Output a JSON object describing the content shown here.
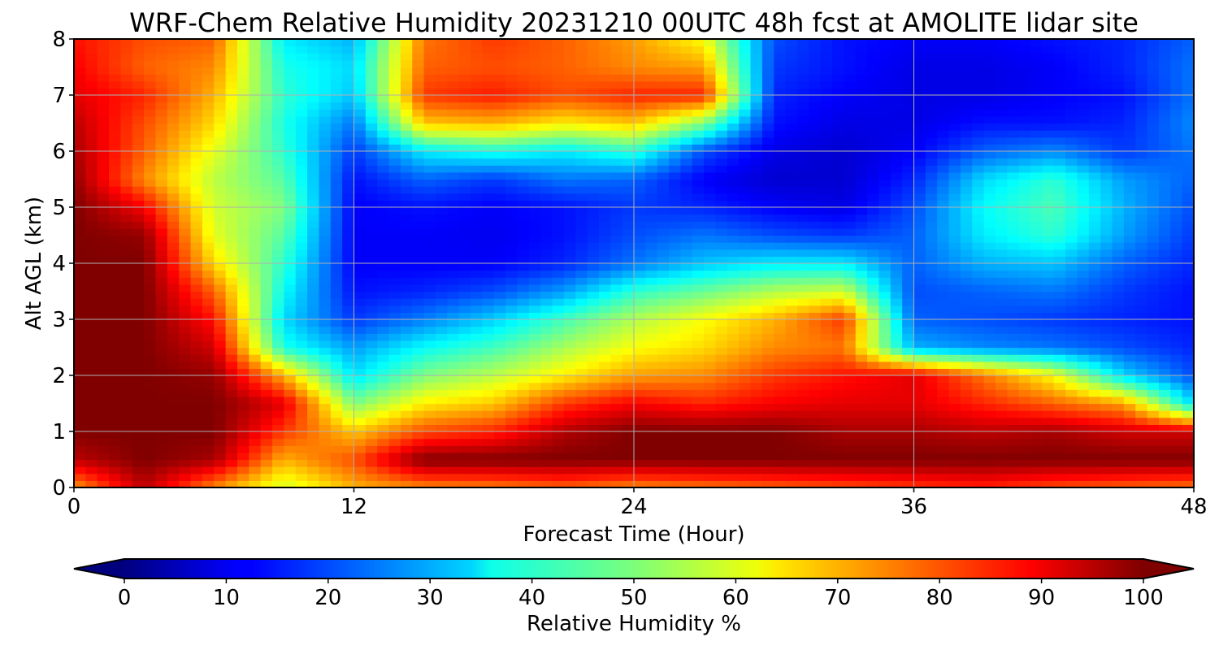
{
  "chart_data": {
    "type": "heatmap",
    "title": "WRF-Chem Relative Humidity 20231210 00UTC 48h fcst at AMOLITE lidar site",
    "xlabel": "Forecast Time (Hour)",
    "ylabel": "Alt AGL (km)",
    "xlim": [
      0,
      48
    ],
    "ylim": [
      0,
      8
    ],
    "x_ticks": [
      0,
      12,
      24,
      36,
      48
    ],
    "y_ticks": [
      0,
      1,
      2,
      3,
      4,
      5,
      6,
      7,
      8
    ],
    "grid": true,
    "colormap": "jet",
    "z_range": [
      0,
      100
    ],
    "colorbar": {
      "label": "Relative Humidity %",
      "ticks": [
        0,
        10,
        20,
        30,
        40,
        50,
        60,
        70,
        80,
        90,
        100
      ],
      "extend": "both",
      "orientation": "horizontal",
      "position": "bottom"
    },
    "x": [
      0,
      3,
      6,
      9,
      12,
      15,
      18,
      21,
      24,
      27,
      30,
      33,
      36,
      39,
      42,
      45,
      48
    ],
    "y": [
      0,
      0.5,
      1,
      1.5,
      2,
      2.5,
      3,
      3.5,
      4,
      4.5,
      5,
      5.5,
      6,
      6.5,
      7,
      7.5,
      8
    ],
    "z": [
      [
        72,
        94,
        74,
        58,
        70,
        74,
        75,
        78,
        74,
        76,
        78,
        80,
        82,
        84,
        80,
        78,
        76
      ],
      [
        94,
        100,
        96,
        70,
        80,
        100,
        100,
        100,
        100,
        100,
        100,
        100,
        100,
        100,
        100,
        100,
        100
      ],
      [
        100,
        100,
        100,
        82,
        68,
        80,
        84,
        95,
        100,
        100,
        100,
        96,
        96,
        94,
        96,
        92,
        92
      ],
      [
        100,
        100,
        100,
        90,
        50,
        64,
        68,
        82,
        88,
        84,
        88,
        90,
        90,
        84,
        78,
        72,
        34
      ],
      [
        100,
        100,
        98,
        70,
        35,
        50,
        56,
        64,
        72,
        74,
        82,
        86,
        90,
        76,
        62,
        34,
        20
      ],
      [
        100,
        100,
        92,
        40,
        28,
        38,
        44,
        54,
        62,
        66,
        74,
        76,
        30,
        26,
        24,
        20,
        16
      ],
      [
        100,
        100,
        86,
        34,
        18,
        25,
        33,
        44,
        55,
        62,
        70,
        82,
        22,
        20,
        18,
        16,
        14
      ],
      [
        100,
        100,
        78,
        38,
        14,
        16,
        20,
        28,
        42,
        48,
        55,
        58,
        20,
        22,
        24,
        18,
        14
      ],
      [
        100,
        100,
        66,
        42,
        12,
        12,
        12,
        16,
        24,
        32,
        36,
        36,
        22,
        30,
        32,
        22,
        16
      ],
      [
        100,
        98,
        60,
        46,
        12,
        12,
        11,
        14,
        20,
        24,
        20,
        18,
        22,
        36,
        42,
        28,
        18
      ],
      [
        100,
        88,
        58,
        50,
        12,
        14,
        12,
        14,
        18,
        16,
        12,
        10,
        20,
        38,
        45,
        30,
        20
      ],
      [
        98,
        74,
        56,
        46,
        14,
        22,
        18,
        24,
        22,
        12,
        8,
        8,
        16,
        34,
        42,
        28,
        22
      ],
      [
        96,
        78,
        60,
        42,
        18,
        36,
        40,
        36,
        42,
        20,
        10,
        8,
        12,
        22,
        26,
        18,
        24
      ],
      [
        94,
        80,
        66,
        40,
        24,
        68,
        70,
        64,
        68,
        50,
        14,
        10,
        10,
        14,
        14,
        16,
        26
      ],
      [
        90,
        84,
        70,
        42,
        32,
        82,
        85,
        80,
        84,
        84,
        16,
        12,
        10,
        10,
        12,
        14,
        24
      ],
      [
        88,
        78,
        74,
        40,
        34,
        78,
        80,
        78,
        74,
        72,
        18,
        14,
        10,
        10,
        12,
        16,
        24
      ],
      [
        86,
        80,
        78,
        36,
        30,
        76,
        82,
        78,
        72,
        62,
        20,
        14,
        12,
        12,
        14,
        16,
        22
      ]
    ]
  }
}
